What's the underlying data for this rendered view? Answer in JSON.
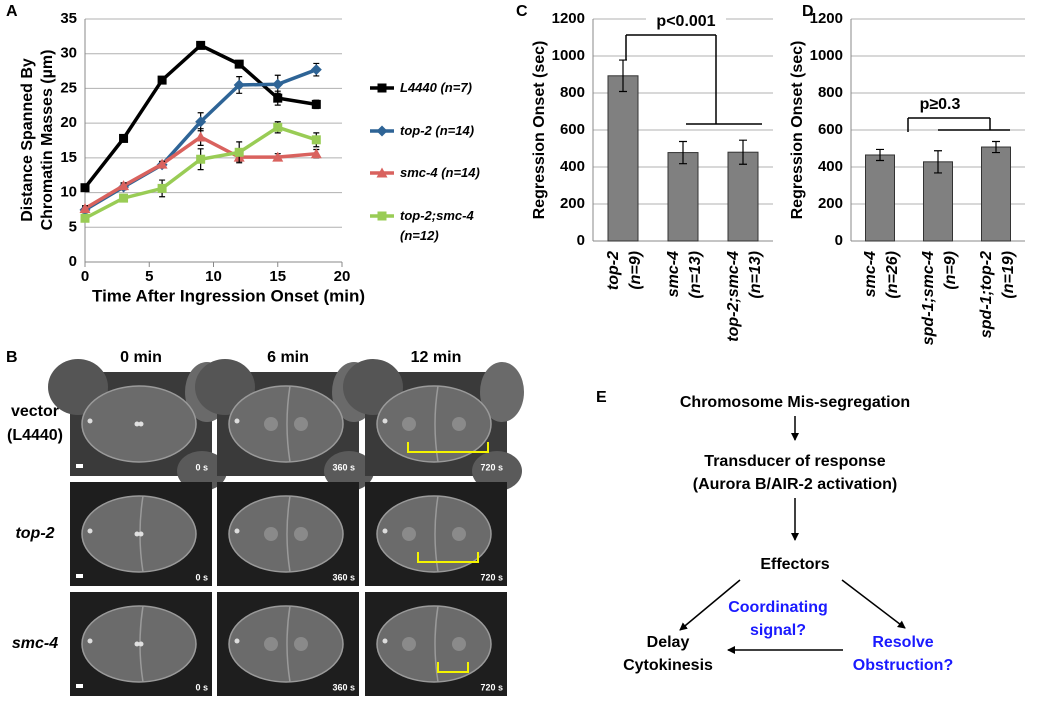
{
  "chart_data": [
    {
      "type": "line",
      "label": "A",
      "xlabel": "Time After Ingression Onset (min)",
      "ylabel": [
        "Distance Spanned By",
        "Chromatin Masses (µm)"
      ],
      "x": [
        0,
        3,
        6,
        9,
        12,
        15,
        18
      ],
      "xlim": [
        0,
        20
      ],
      "xticks": [
        0,
        5,
        10,
        15,
        20
      ],
      "ylim": [
        0,
        35
      ],
      "yticks": [
        0,
        5,
        10,
        15,
        20,
        25,
        30,
        35
      ],
      "grid": true,
      "series": [
        {
          "name": "L4440 (n=7)",
          "color": "#000000",
          "marker": "square",
          "values": [
            10.7,
            17.8,
            26.2,
            31.2,
            28.5,
            23.6,
            22.7
          ],
          "errors": [
            0.5,
            0.4,
            0.4,
            0.4,
            0.4,
            1.0,
            0.6
          ]
        },
        {
          "name": "top-2 (n=14)",
          "color": "#2e6496",
          "marker": "diamond",
          "values": [
            7.5,
            10.8,
            14.0,
            20.2,
            25.5,
            25.6,
            27.7
          ],
          "errors": [
            0.4,
            0.4,
            0.4,
            1.3,
            1.2,
            1.3,
            0.9
          ]
        },
        {
          "name": "smc-4 (n=14)",
          "color": "#d9625e",
          "marker": "triangle",
          "values": [
            7.7,
            11.0,
            14.1,
            18.0,
            15.1,
            15.1,
            15.6
          ],
          "errors": [
            0.4,
            0.4,
            0.4,
            1.2,
            0.6,
            0.5,
            0.6
          ]
        },
        {
          "name": "top-2;smc-4 (n=12)",
          "color": "#99cc55",
          "marker": "square",
          "values": [
            6.3,
            9.2,
            10.6,
            14.8,
            15.8,
            19.4,
            17.6
          ],
          "errors": [
            0.4,
            0.4,
            1.2,
            1.5,
            1.5,
            0.8,
            1.0
          ]
        }
      ]
    },
    {
      "type": "bar",
      "label": "C",
      "ylabel": "Regression Onset (sec)",
      "categories": [
        "top-2",
        "smc-4",
        "top-2;smc-4"
      ],
      "category_counts": [
        "(n=9)",
        "(n=13)",
        "(n=13)"
      ],
      "values": [
        893,
        478,
        480
      ],
      "errors": [
        85,
        60,
        65
      ],
      "color": "#808080",
      "ylim": [
        0,
        1200
      ],
      "yticks": [
        0,
        200,
        400,
        600,
        800,
        1000,
        1200
      ],
      "grid": true,
      "annotation": "p<0.001"
    },
    {
      "type": "bar",
      "label": "D",
      "ylabel": "Regression Onset (sec)",
      "categories": [
        "smc-4",
        "spd-1;smc-4",
        "spd-1;top-2"
      ],
      "category_counts": [
        "(n=26)",
        "(n=9)",
        "(n=19)"
      ],
      "values": [
        465,
        428,
        508
      ],
      "errors": [
        30,
        60,
        30
      ],
      "color": "#808080",
      "ylim": [
        0,
        1200
      ],
      "yticks": [
        0,
        200,
        400,
        600,
        800,
        1000,
        1200
      ],
      "grid": true,
      "annotation": "p≥0.3"
    }
  ],
  "micrographs": {
    "label": "B",
    "columns": [
      "0 min",
      "6 min",
      "12 min"
    ],
    "timestamps": [
      "0 s",
      "360 s",
      "720 s"
    ],
    "rows": [
      {
        "label": [
          "vector",
          "(L4440)"
        ]
      },
      {
        "label": [
          "top-2"
        ]
      },
      {
        "label": [
          "smc-4"
        ]
      }
    ]
  },
  "diagram": {
    "label": "E",
    "nodes": [
      {
        "lines": [
          "Chromosome Mis-segregation"
        ],
        "color": "#000000"
      },
      {
        "lines": [
          "Transducer of response",
          "(Aurora B/AIR-2 activation)"
        ],
        "color": "#000000"
      },
      {
        "lines": [
          "Effectors"
        ],
        "color": "#000000"
      },
      {
        "lines": [
          "Coordinating",
          "signal?"
        ],
        "color": "#1a1aff"
      },
      {
        "lines": [
          "Resolve",
          "Obstruction?"
        ],
        "color": "#1a1aff"
      },
      {
        "lines": [
          "Delay",
          "Cytokinesis"
        ],
        "color": "#000000"
      }
    ]
  }
}
